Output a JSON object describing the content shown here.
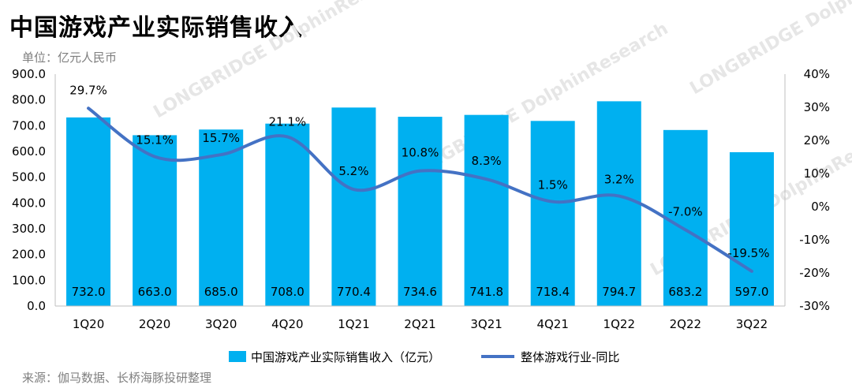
{
  "title": "中国游戏产业实际销售收入",
  "unit_label": "单位：亿元人民币",
  "source": "来源：伽马数据、长桥海豚投研整理",
  "colors": {
    "bar": "#00b0f0",
    "line": "#4472c4"
  },
  "chart_data": {
    "type": "bar",
    "categories": [
      "1Q20",
      "2Q20",
      "3Q20",
      "4Q20",
      "1Q21",
      "2Q21",
      "3Q21",
      "4Q21",
      "1Q22",
      "2Q22",
      "3Q22"
    ],
    "series": [
      {
        "name": "中国游戏产业实际销售收入（亿元）",
        "type": "bar",
        "axis": "left",
        "values": [
          732.0,
          663.0,
          685.0,
          708.0,
          770.4,
          734.6,
          741.8,
          718.4,
          794.7,
          683.2,
          597.0
        ],
        "labels": [
          "732.0",
          "663.0",
          "685.0",
          "708.0",
          "770.4",
          "734.6",
          "741.8",
          "718.4",
          "794.7",
          "683.2",
          "597.0"
        ]
      },
      {
        "name": "整体游戏行业-同比",
        "type": "line",
        "axis": "right",
        "values": [
          29.7,
          15.1,
          15.7,
          21.1,
          5.2,
          10.8,
          8.3,
          1.5,
          3.2,
          -7.0,
          -19.5
        ],
        "labels": [
          "29.7%",
          "15.1%",
          "15.7%",
          "21.1%",
          "5.2%",
          "10.8%",
          "8.3%",
          "1.5%",
          "3.2%",
          "-7.0%",
          "-19.5%"
        ]
      }
    ],
    "y_left": {
      "min": 0,
      "max": 900,
      "ticks": [
        "0.0",
        "100.0",
        "200.0",
        "300.0",
        "400.0",
        "500.0",
        "600.0",
        "700.0",
        "800.0",
        "900.0"
      ]
    },
    "y_right": {
      "min": -30,
      "max": 40,
      "ticks": [
        "-30%",
        "-20%",
        "-10%",
        "0%",
        "10%",
        "20%",
        "30%",
        "40%"
      ]
    },
    "grid": false,
    "legend_position": "bottom"
  },
  "watermark": "LONGBRIDGE DolphinResearch"
}
